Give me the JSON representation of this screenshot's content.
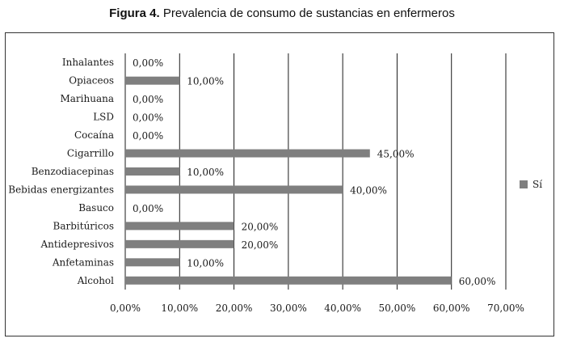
{
  "title": {
    "figure_label": "Figura 4.",
    "text": "Prevalencia de consumo de sustancias en enfermeros"
  },
  "colors": {
    "bar": "#7f7f7f",
    "grid": "#1a1a1a"
  },
  "chart_data": {
    "type": "bar",
    "orientation": "horizontal",
    "categories": [
      "Inhalantes",
      "Opiaceos",
      "Marihuana",
      "LSD",
      "Cocaína",
      "Cigarrillo",
      "Benzodiacepinas",
      "Bebidas energizantes",
      "Basuco",
      "Barbitúricos",
      "Antidepresivos",
      "Anfetaminas",
      "Alcohol"
    ],
    "series": [
      {
        "name": "Sí",
        "values": [
          0,
          10,
          0,
          0,
          0,
          45,
          10,
          40,
          0,
          20,
          20,
          10,
          60
        ]
      }
    ],
    "data_labels": [
      "0,00%",
      "10,00%",
      "0,00%",
      "0,00%",
      "0,00%",
      "45,00%",
      "10,00%",
      "40,00%",
      "0,00%",
      "20,00%",
      "20,00%",
      "10,00%",
      "60,00%"
    ],
    "x_ticks": [
      0,
      10,
      20,
      30,
      40,
      50,
      60,
      70
    ],
    "x_tick_labels": [
      "0,00%",
      "10,00%",
      "20,00%",
      "30,00%",
      "40,00%",
      "50,00%",
      "60,00%",
      "70,00%"
    ],
    "xlim": [
      0,
      70
    ],
    "grid": true,
    "legend": {
      "position": "right",
      "entries": [
        "Sí"
      ]
    },
    "xlabel": "",
    "ylabel": ""
  }
}
